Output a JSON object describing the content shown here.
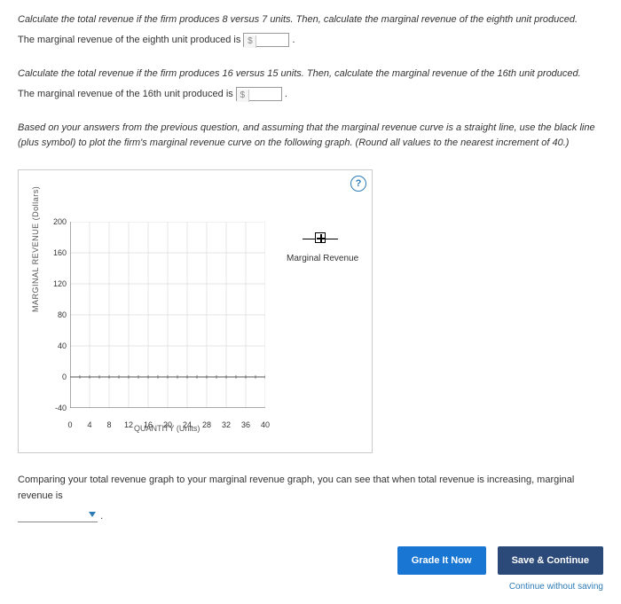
{
  "q1": {
    "prompt": "Calculate the total revenue if the firm produces 8 versus 7 units. Then, calculate the marginal revenue of the eighth unit produced.",
    "answer_prefix": "The marginal revenue of the eighth unit produced is",
    "currency": "$",
    "value": ""
  },
  "q2": {
    "prompt": "Calculate the total revenue if the firm produces 16 versus 15 units. Then, calculate the marginal revenue of the 16th unit produced.",
    "answer_prefix": "The marginal revenue of the 16th unit produced is",
    "currency": "$",
    "value": ""
  },
  "q3": {
    "prompt": "Based on your answers from the previous question, and assuming that the marginal revenue curve is a straight line, use the black line (plus symbol) to plot the firm's marginal revenue curve on the following graph. (Round all values to the nearest increment of 40.)"
  },
  "chart": {
    "type": "line",
    "y_label": "MARGINAL REVENUE (Dollars)",
    "x_label": "QUANTITY (Units)",
    "ylim": [
      -40,
      200
    ],
    "xlim": [
      0,
      40
    ],
    "y_ticks": [
      -40,
      0,
      40,
      80,
      120,
      160,
      200
    ],
    "x_ticks": [
      0,
      4,
      8,
      12,
      16,
      20,
      24,
      28,
      32,
      36,
      40
    ],
    "grid_color": "#dddddd",
    "axis_color": "#555555",
    "background_color": "#ffffff",
    "legend": {
      "label": "Marginal Revenue",
      "color": "#000000",
      "marker": "plus"
    },
    "help_icon_color": "#2c7bb6",
    "tick_fontsize": 9,
    "label_fontsize": 9
  },
  "compare": {
    "text_before": "Comparing your total revenue graph to your marginal revenue graph, you can see that when total revenue is increasing, marginal revenue is",
    "dropdown_value": "",
    "text_after": "."
  },
  "buttons": {
    "grade": "Grade It Now",
    "save": "Save & Continue",
    "continue_link": "Continue without saving"
  },
  "colors": {
    "primary_blue": "#1976d2",
    "dark_blue": "#2b4a7a",
    "link_blue": "#2c7bb6"
  }
}
